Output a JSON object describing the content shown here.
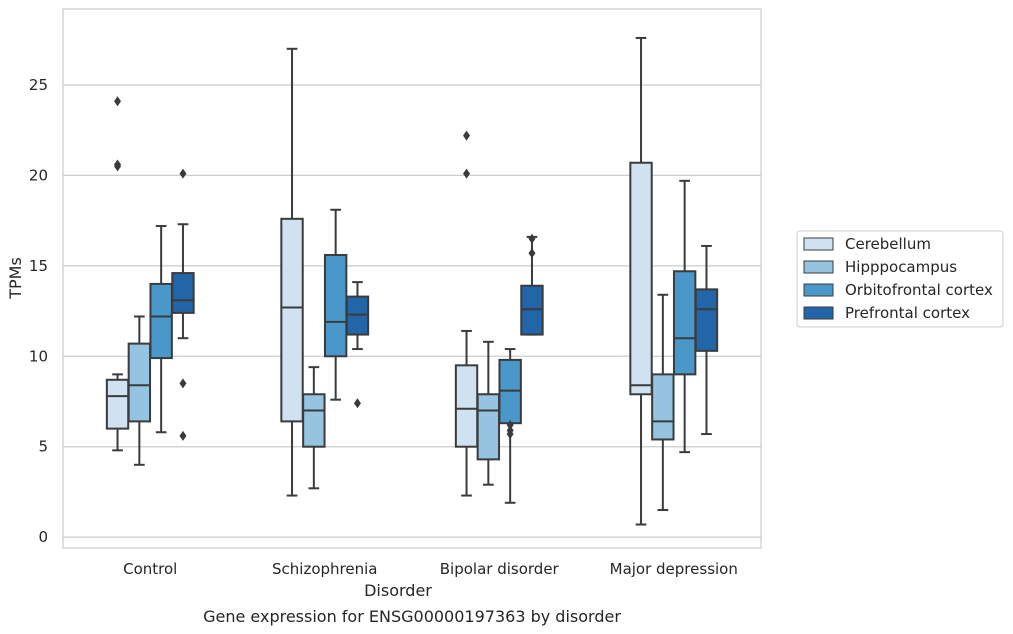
{
  "caption": "Gene expression for ENSG00000197363 by disorder",
  "chart_data": {
    "type": "box",
    "title": "",
    "xlabel": "Disorder",
    "ylabel": "TPMs",
    "ylim": [
      -0.6,
      29.2
    ],
    "yticks": [
      0,
      5,
      10,
      15,
      20,
      25
    ],
    "categories": [
      "Control",
      "Schizophrenia",
      "Bipolar disorder",
      "Major depression"
    ],
    "grid": "horizontal",
    "legend_position": "right",
    "series": [
      {
        "name": "Cerebellum",
        "color": "#d0e1f2",
        "boxes": [
          {
            "whislo": 4.8,
            "q1": 6.0,
            "med": 7.8,
            "q3": 8.7,
            "whishi": 9.0,
            "fliers": [
              20.5,
              20.6,
              24.1
            ]
          },
          {
            "whislo": 2.3,
            "q1": 6.4,
            "med": 12.7,
            "q3": 17.6,
            "whishi": 27.0,
            "fliers": []
          },
          {
            "whislo": 2.3,
            "q1": 5.0,
            "med": 7.1,
            "q3": 9.5,
            "whishi": 11.4,
            "fliers": [
              20.1,
              22.2
            ]
          },
          {
            "whislo": 0.7,
            "q1": 7.9,
            "med": 8.4,
            "q3": 20.7,
            "whishi": 27.6,
            "fliers": []
          }
        ]
      },
      {
        "name": "Hipppocampus",
        "color": "#94c4df",
        "boxes": [
          {
            "whislo": 4.0,
            "q1": 6.4,
            "med": 8.4,
            "q3": 10.7,
            "whishi": 12.2,
            "fliers": []
          },
          {
            "whislo": 2.7,
            "q1": 5.0,
            "med": 7.0,
            "q3": 7.9,
            "whishi": 9.4,
            "fliers": []
          },
          {
            "whislo": 2.9,
            "q1": 4.3,
            "med": 7.0,
            "q3": 7.9,
            "whishi": 10.8,
            "fliers": []
          },
          {
            "whislo": 1.5,
            "q1": 5.4,
            "med": 6.4,
            "q3": 9.0,
            "whishi": 13.4,
            "fliers": []
          }
        ]
      },
      {
        "name": "Orbitofrontal cortex",
        "color": "#4a98c9",
        "boxes": [
          {
            "whislo": 5.8,
            "q1": 9.9,
            "med": 12.2,
            "q3": 14.0,
            "whishi": 17.2,
            "fliers": []
          },
          {
            "whislo": 7.6,
            "q1": 10.0,
            "med": 11.9,
            "q3": 15.6,
            "whishi": 18.1,
            "fliers": []
          },
          {
            "whislo": 1.9,
            "q1": 6.3,
            "med": 8.1,
            "q3": 9.8,
            "whishi": 10.4,
            "fliers": [
              5.7,
              5.9,
              6.2
            ]
          },
          {
            "whislo": 4.7,
            "q1": 9.0,
            "med": 11.0,
            "q3": 14.7,
            "whishi": 19.7,
            "fliers": []
          }
        ]
      },
      {
        "name": "Prefrontal cortex",
        "color": "#2365a9",
        "boxes": [
          {
            "whislo": 11.0,
            "q1": 12.4,
            "med": 13.1,
            "q3": 14.6,
            "whishi": 17.3,
            "fliers": [
              5.6,
              8.5,
              20.1
            ]
          },
          {
            "whislo": 10.4,
            "q1": 11.2,
            "med": 12.3,
            "q3": 13.3,
            "whishi": 14.1,
            "fliers": [
              7.4
            ]
          },
          {
            "whislo": 11.2,
            "q1": 11.2,
            "med": 12.6,
            "q3": 13.9,
            "whishi": 16.6,
            "fliers": [
              15.7,
              16.5
            ]
          },
          {
            "whislo": 5.7,
            "q1": 10.3,
            "med": 12.6,
            "q3": 13.7,
            "whishi": 16.1,
            "fliers": []
          }
        ]
      }
    ]
  }
}
